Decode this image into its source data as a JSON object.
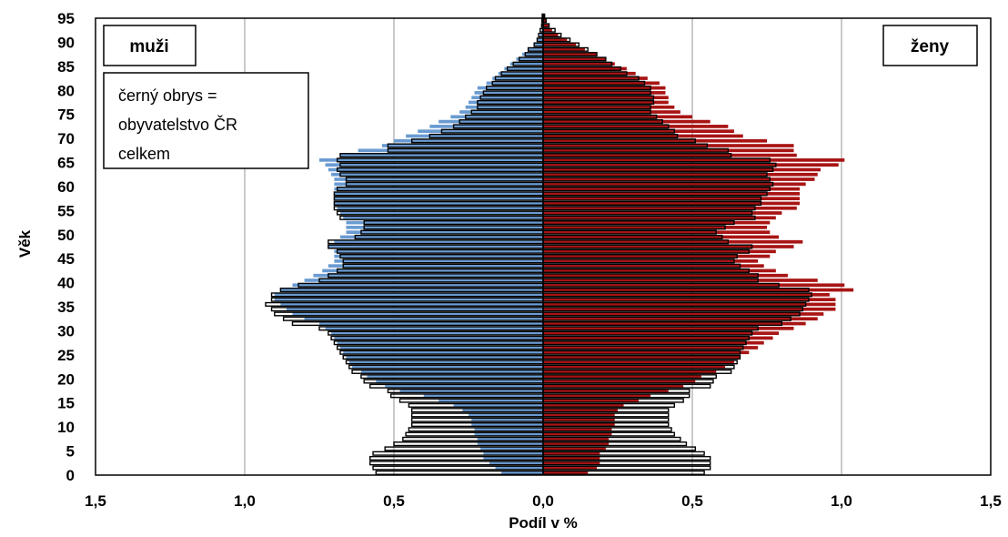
{
  "chart_data": {
    "type": "bar",
    "orientation": "horizontal",
    "population_pyramid": true,
    "xlabel": "Podíl v %",
    "ylabel": "Věk",
    "xlim": [
      -1.5,
      1.5
    ],
    "ylim": [
      0,
      95
    ],
    "x_tick_labels": [
      "1,5",
      "1,0",
      "0,5",
      "0,0",
      "0,5",
      "1,0",
      "1,5"
    ],
    "x_tick_values": [
      -1.5,
      -1.0,
      -0.5,
      0,
      0.5,
      1.0,
      1.5
    ],
    "y_ticks": [
      0,
      5,
      10,
      15,
      20,
      25,
      30,
      35,
      40,
      45,
      50,
      55,
      60,
      65,
      70,
      75,
      80,
      85,
      90,
      95
    ],
    "grid": "vertical",
    "labels": {
      "left": "muži",
      "right": "ženy"
    },
    "annotation": [
      "černý obrys =",
      "obyvatelstvo ČR",
      "celkem"
    ],
    "colors": {
      "male_fill": "#6a9bd1",
      "female_fill": "#a81414",
      "outline": "#000000",
      "grid": "#a6a6a6"
    },
    "series": [
      {
        "key": "men_subgroup",
        "values": [
          0.14,
          0.16,
          0.18,
          0.2,
          0.2,
          0.21,
          0.22,
          0.22,
          0.23,
          0.23,
          0.24,
          0.24,
          0.25,
          0.27,
          0.3,
          0.35,
          0.4,
          0.48,
          0.53,
          0.56,
          0.59,
          0.61,
          0.64,
          0.65,
          0.66,
          0.67,
          0.68,
          0.69,
          0.7,
          0.71,
          0.73,
          0.75,
          0.8,
          0.84,
          0.86,
          0.88,
          0.9,
          0.9,
          0.88,
          0.84,
          0.8,
          0.77,
          0.74,
          0.72,
          0.7,
          0.7,
          0.7,
          0.72,
          0.7,
          0.68,
          0.66,
          0.66,
          0.66,
          0.67,
          0.68,
          0.69,
          0.7,
          0.7,
          0.7,
          0.7,
          0.7,
          0.7,
          0.71,
          0.72,
          0.73,
          0.75,
          0.68,
          0.62,
          0.54,
          0.5,
          0.46,
          0.42,
          0.38,
          0.35,
          0.31,
          0.28,
          0.26,
          0.25,
          0.24,
          0.23,
          0.22,
          0.19,
          0.17,
          0.15,
          0.13,
          0.11,
          0.09,
          0.07,
          0.05,
          0.03,
          0.02,
          0.01,
          0.005,
          0.003,
          0.002,
          0.001
        ]
      },
      {
        "key": "men_total",
        "values": [
          0.56,
          0.57,
          0.58,
          0.58,
          0.57,
          0.53,
          0.5,
          0.47,
          0.46,
          0.45,
          0.44,
          0.44,
          0.44,
          0.44,
          0.45,
          0.48,
          0.51,
          0.52,
          0.58,
          0.6,
          0.61,
          0.64,
          0.65,
          0.66,
          0.67,
          0.68,
          0.69,
          0.7,
          0.71,
          0.72,
          0.75,
          0.84,
          0.87,
          0.9,
          0.91,
          0.93,
          0.91,
          0.91,
          0.88,
          0.82,
          0.75,
          0.72,
          0.69,
          0.67,
          0.67,
          0.68,
          0.69,
          0.72,
          0.72,
          0.63,
          0.61,
          0.6,
          0.6,
          0.68,
          0.69,
          0.7,
          0.7,
          0.7,
          0.7,
          0.69,
          0.66,
          0.66,
          0.68,
          0.69,
          0.68,
          0.69,
          0.68,
          0.52,
          0.52,
          0.44,
          0.38,
          0.34,
          0.3,
          0.28,
          0.26,
          0.24,
          0.22,
          0.22,
          0.21,
          0.2,
          0.19,
          0.17,
          0.16,
          0.14,
          0.12,
          0.1,
          0.08,
          0.06,
          0.05,
          0.03,
          0.02,
          0.015,
          0.01,
          0.005,
          0.004,
          0.003
        ]
      },
      {
        "key": "women_subgroup",
        "values": [
          0.15,
          0.18,
          0.19,
          0.19,
          0.19,
          0.21,
          0.22,
          0.22,
          0.23,
          0.23,
          0.24,
          0.24,
          0.24,
          0.25,
          0.27,
          0.32,
          0.36,
          0.42,
          0.47,
          0.51,
          0.53,
          0.58,
          0.61,
          0.64,
          0.66,
          0.69,
          0.72,
          0.74,
          0.77,
          0.79,
          0.84,
          0.88,
          0.92,
          0.94,
          0.98,
          0.98,
          0.98,
          0.96,
          1.04,
          1.01,
          0.92,
          0.82,
          0.78,
          0.74,
          0.72,
          0.76,
          0.78,
          0.84,
          0.87,
          0.79,
          0.76,
          0.75,
          0.76,
          0.78,
          0.8,
          0.85,
          0.86,
          0.86,
          0.86,
          0.86,
          0.88,
          0.91,
          0.92,
          0.93,
          0.99,
          1.01,
          0.85,
          0.84,
          0.84,
          0.75,
          0.67,
          0.64,
          0.62,
          0.56,
          0.5,
          0.46,
          0.44,
          0.42,
          0.42,
          0.41,
          0.41,
          0.39,
          0.35,
          0.31,
          0.28,
          0.24,
          0.21,
          0.18,
          0.14,
          0.11,
          0.08,
          0.05,
          0.03,
          0.02,
          0.01,
          0.005
        ]
      },
      {
        "key": "women_total",
        "values": [
          0.54,
          0.56,
          0.56,
          0.56,
          0.54,
          0.51,
          0.48,
          0.46,
          0.44,
          0.43,
          0.42,
          0.42,
          0.42,
          0.42,
          0.44,
          0.47,
          0.49,
          0.49,
          0.56,
          0.57,
          0.58,
          0.63,
          0.64,
          0.65,
          0.66,
          0.66,
          0.67,
          0.68,
          0.69,
          0.7,
          0.72,
          0.8,
          0.83,
          0.86,
          0.87,
          0.88,
          0.89,
          0.9,
          0.89,
          0.79,
          0.72,
          0.72,
          0.69,
          0.66,
          0.64,
          0.65,
          0.69,
          0.7,
          0.62,
          0.6,
          0.58,
          0.61,
          0.64,
          0.71,
          0.7,
          0.71,
          0.73,
          0.73,
          0.75,
          0.76,
          0.77,
          0.76,
          0.75,
          0.77,
          0.78,
          0.76,
          0.63,
          0.62,
          0.55,
          0.51,
          0.45,
          0.44,
          0.42,
          0.4,
          0.38,
          0.36,
          0.36,
          0.37,
          0.37,
          0.36,
          0.36,
          0.34,
          0.32,
          0.28,
          0.26,
          0.23,
          0.21,
          0.18,
          0.15,
          0.12,
          0.09,
          0.06,
          0.04,
          0.02,
          0.01,
          0.005
        ]
      }
    ]
  }
}
